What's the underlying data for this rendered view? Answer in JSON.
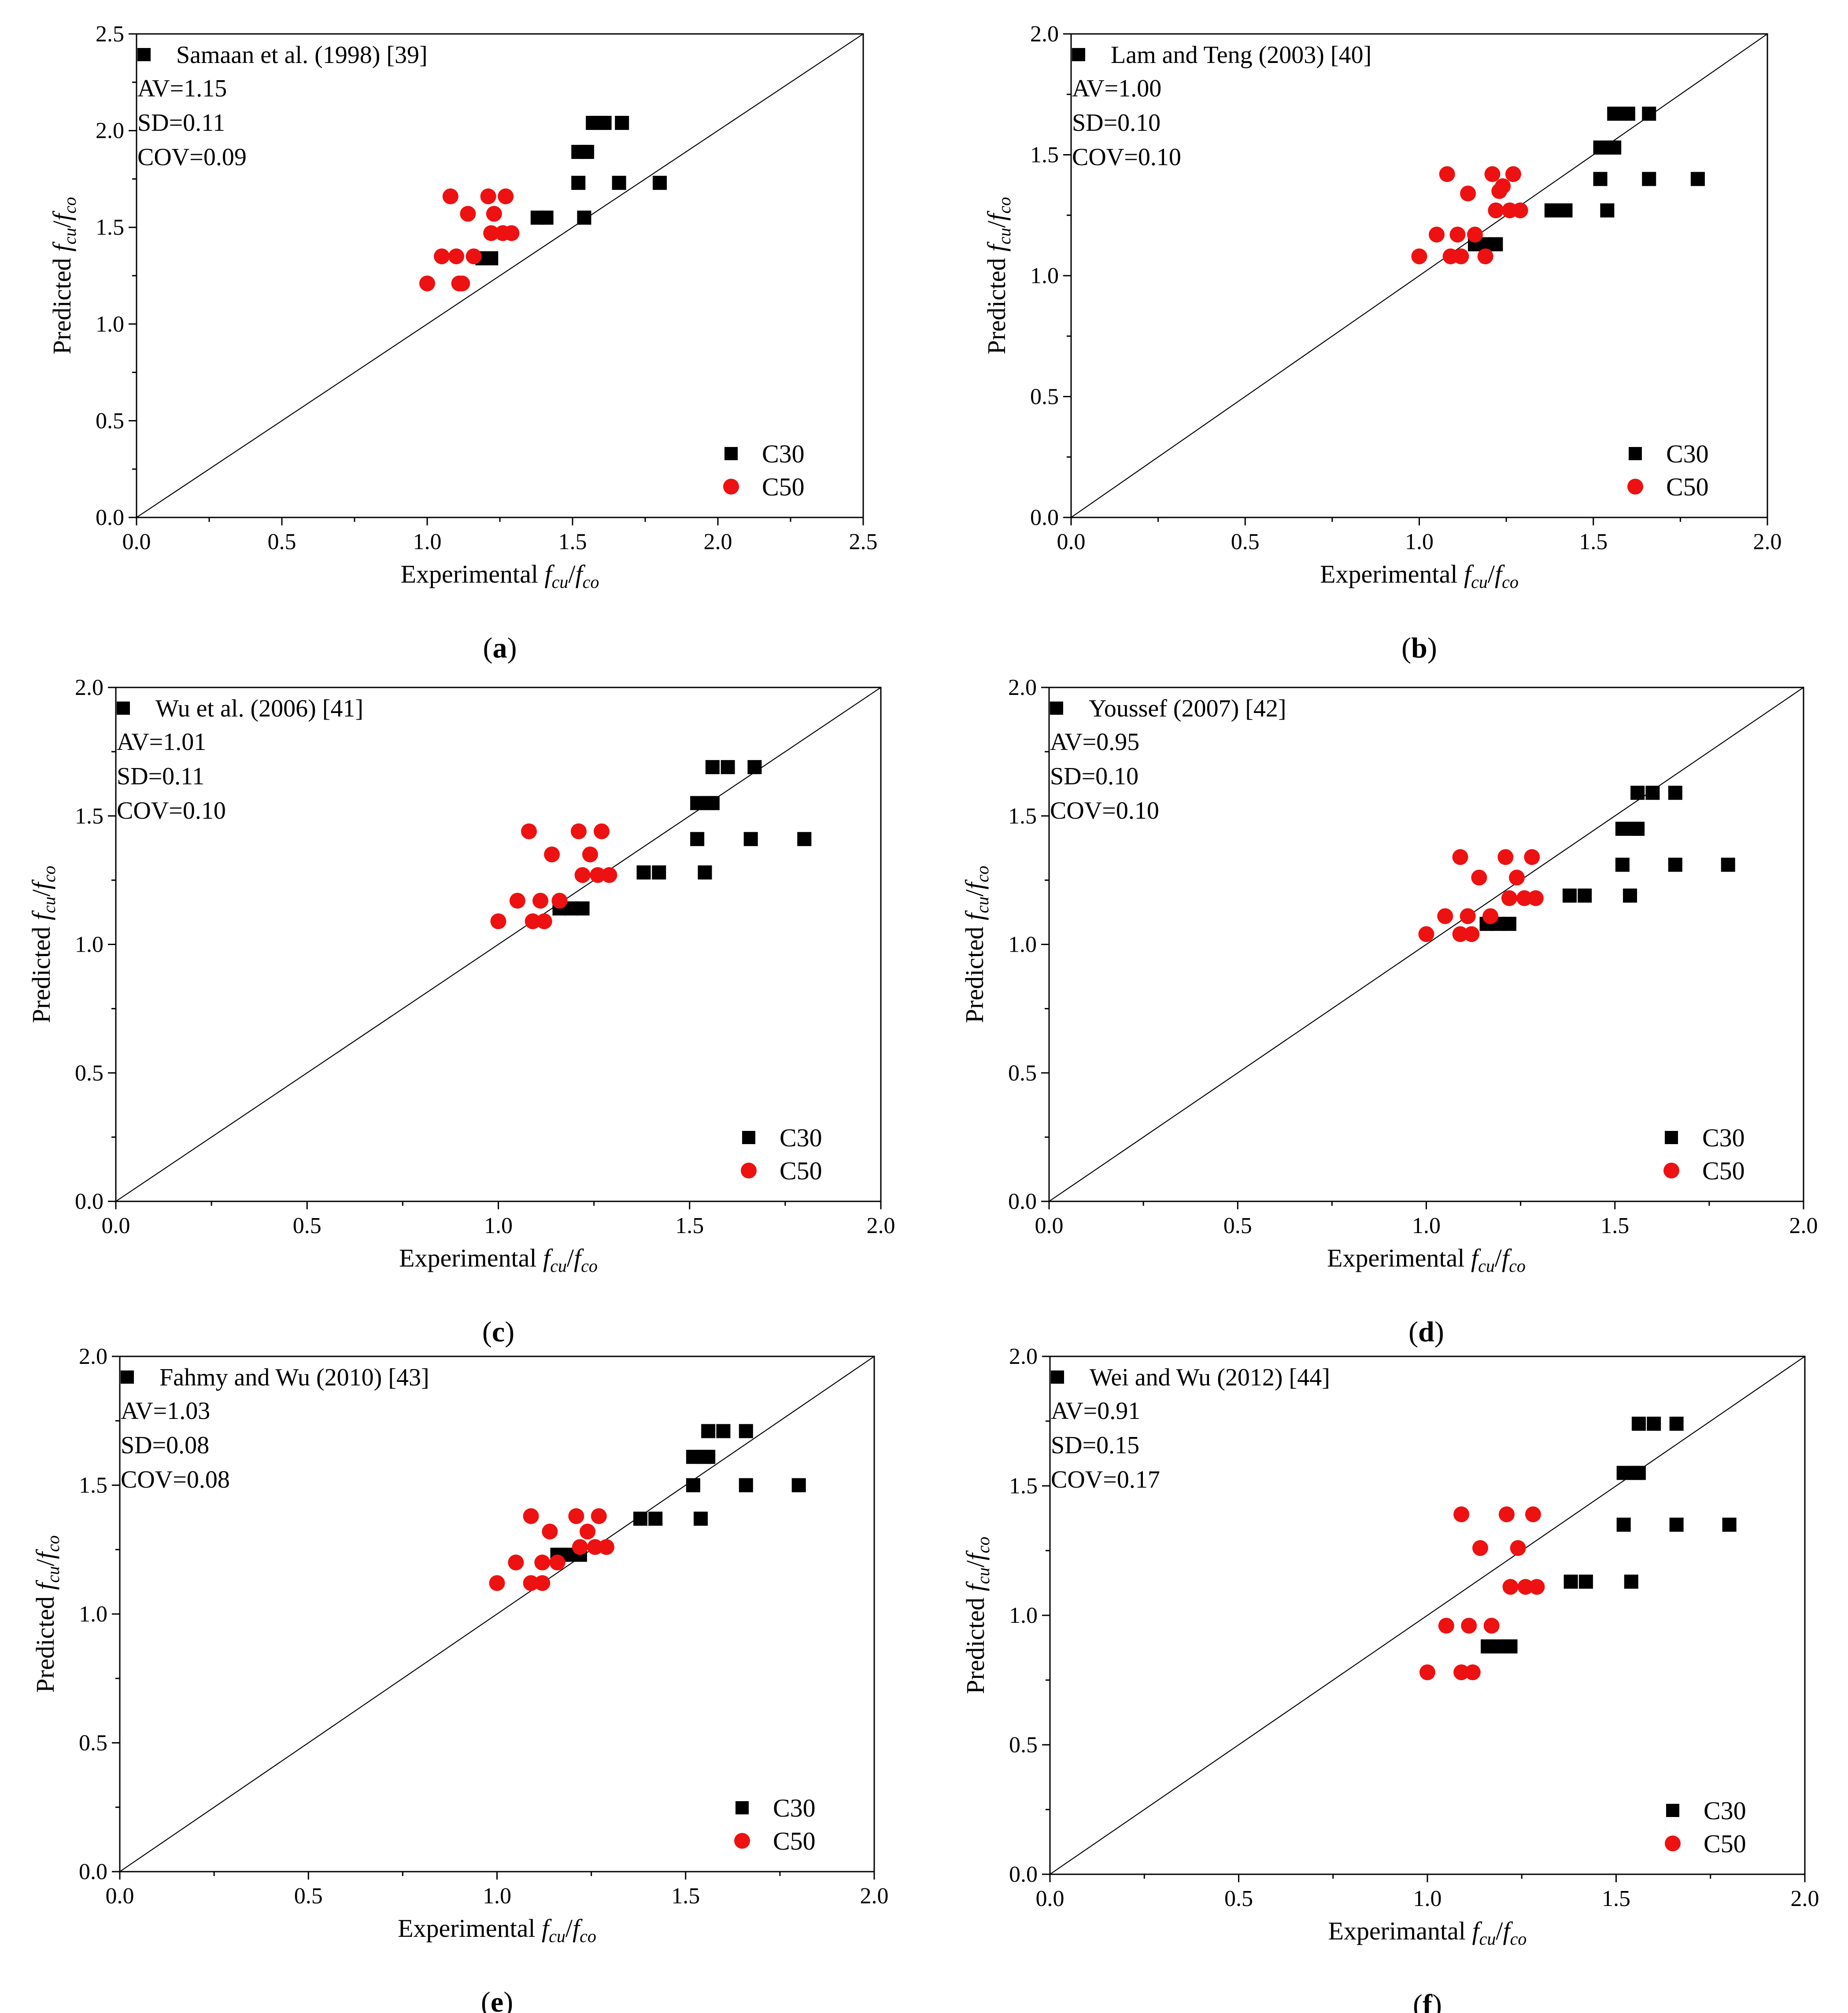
{
  "figure": {
    "legend": {
      "c30": "C30",
      "c50": "C50"
    },
    "colors": {
      "c30": "#000000",
      "c50": "#ee1111"
    }
  },
  "chart_data": [
    {
      "id": "a",
      "type": "scatter",
      "panel_label": "a",
      "xlabel_prefix": "Experimental ",
      "ylabel_prefix": "Predicted ",
      "xlim": [
        0,
        2.5
      ],
      "ylim": [
        0,
        2.5
      ],
      "xticks": [
        "0.0",
        "0.5",
        "1.0",
        "1.5",
        "2.0",
        "2.5"
      ],
      "yticks": [
        "0.0",
        "0.5",
        "1.0",
        "1.5",
        "2.0",
        "2.5"
      ],
      "model_label": "Samaan et al. (1998) [39]",
      "stats": [
        "AV=1.15",
        "SD=0.11",
        "COV=0.09"
      ],
      "series": [
        {
          "name": "C30",
          "marker": "square",
          "x": [
            1.19,
            1.22,
            1.38,
            1.41,
            1.52,
            1.55,
            1.52,
            1.54,
            1.57,
            1.59,
            1.61,
            1.67,
            1.66,
            1.8
          ],
          "y": [
            1.34,
            1.34,
            1.55,
            1.55,
            1.89,
            1.89,
            1.73,
            1.55,
            2.04,
            2.04,
            2.04,
            2.04,
            1.73,
            1.73
          ]
        },
        {
          "name": "C50",
          "marker": "circle",
          "x": [
            1.0,
            1.05,
            1.08,
            1.1,
            1.12,
            1.11,
            1.14,
            1.16,
            1.21,
            1.22,
            1.23,
            1.26,
            1.27,
            1.29
          ],
          "y": [
            1.21,
            1.35,
            1.66,
            1.35,
            1.21,
            1.21,
            1.57,
            1.35,
            1.66,
            1.47,
            1.57,
            1.47,
            1.66,
            1.47
          ]
        }
      ]
    },
    {
      "id": "b",
      "type": "scatter",
      "panel_label": "b",
      "xlabel_prefix": "Experimental ",
      "ylabel_prefix": "Predicted ",
      "xlim": [
        0,
        2.0
      ],
      "ylim": [
        0,
        2.0
      ],
      "xticks": [
        "0.0",
        "0.5",
        "1.0",
        "1.5",
        "2.0"
      ],
      "yticks": [
        "0.0",
        "0.5",
        "1.0",
        "1.5",
        "2.0"
      ],
      "model_label": "Lam and Teng (2003) [40]",
      "stats": [
        "AV=1.00",
        "SD=0.10",
        "COV=0.10"
      ],
      "series": [
        {
          "name": "C30",
          "marker": "square",
          "x": [
            1.16,
            1.19,
            1.22,
            1.38,
            1.42,
            1.52,
            1.55,
            1.56,
            1.56,
            1.6,
            1.66,
            1.52,
            1.66,
            1.54,
            1.8
          ],
          "y": [
            1.13,
            1.13,
            1.13,
            1.27,
            1.27,
            1.53,
            1.53,
            1.53,
            1.67,
            1.67,
            1.67,
            1.4,
            1.4,
            1.27,
            1.4
          ]
        },
        {
          "name": "C50",
          "marker": "circle",
          "x": [
            1.0,
            1.05,
            1.08,
            1.09,
            1.11,
            1.12,
            1.14,
            1.16,
            1.19,
            1.21,
            1.22,
            1.23,
            1.24,
            1.26,
            1.27,
            1.29
          ],
          "y": [
            1.08,
            1.17,
            1.42,
            1.08,
            1.17,
            1.08,
            1.34,
            1.17,
            1.08,
            1.42,
            1.27,
            1.35,
            1.37,
            1.27,
            1.42,
            1.27
          ]
        }
      ]
    },
    {
      "id": "c",
      "type": "scatter",
      "panel_label": "c",
      "xlabel_prefix": "Experimental ",
      "ylabel_prefix": "Predicted ",
      "xlim": [
        0,
        2.0
      ],
      "ylim": [
        0,
        2.0
      ],
      "xticks": [
        "0.0",
        "0.5",
        "1.0",
        "1.5",
        "2.0"
      ],
      "yticks": [
        "0.0",
        "0.5",
        "1.0",
        "1.5",
        "2.0"
      ],
      "model_label": "Wu et al. (2006) [41]",
      "stats": [
        "AV=1.01",
        "SD=0.11",
        "COV=0.10"
      ],
      "series": [
        {
          "name": "C30",
          "marker": "square",
          "x": [
            1.16,
            1.19,
            1.22,
            1.38,
            1.42,
            1.52,
            1.55,
            1.56,
            1.56,
            1.6,
            1.67,
            1.52,
            1.66,
            1.54,
            1.8
          ],
          "y": [
            1.14,
            1.14,
            1.14,
            1.28,
            1.28,
            1.55,
            1.55,
            1.55,
            1.69,
            1.69,
            1.69,
            1.41,
            1.41,
            1.28,
            1.41
          ]
        },
        {
          "name": "C50",
          "marker": "circle",
          "x": [
            1.0,
            1.05,
            1.08,
            1.09,
            1.11,
            1.12,
            1.14,
            1.16,
            1.21,
            1.22,
            1.24,
            1.26,
            1.27,
            1.29
          ],
          "y": [
            1.09,
            1.17,
            1.44,
            1.09,
            1.17,
            1.09,
            1.35,
            1.17,
            1.44,
            1.27,
            1.35,
            1.27,
            1.44,
            1.27
          ]
        }
      ]
    },
    {
      "id": "d",
      "type": "scatter",
      "panel_label": "d",
      "xlabel_prefix": "Experimental ",
      "ylabel_prefix": "Predicted ",
      "xlim": [
        0,
        2.0
      ],
      "ylim": [
        0,
        2.0
      ],
      "xticks": [
        "0.0",
        "0.5",
        "1.0",
        "1.5",
        "2.0"
      ],
      "yticks": [
        "0.0",
        "0.5",
        "1.0",
        "1.5",
        "2.0"
      ],
      "model_label": "Youssef (2007) [42]",
      "stats": [
        "AV=0.95",
        "SD=0.10",
        "COV=0.10"
      ],
      "series": [
        {
          "name": "C30",
          "marker": "square",
          "x": [
            1.16,
            1.19,
            1.22,
            1.38,
            1.42,
            1.52,
            1.55,
            1.56,
            1.56,
            1.6,
            1.66,
            1.52,
            1.66,
            1.54,
            1.8
          ],
          "y": [
            1.08,
            1.08,
            1.08,
            1.19,
            1.19,
            1.45,
            1.45,
            1.45,
            1.59,
            1.59,
            1.59,
            1.31,
            1.31,
            1.19,
            1.31
          ]
        },
        {
          "name": "C50",
          "marker": "circle",
          "x": [
            1.0,
            1.05,
            1.09,
            1.09,
            1.11,
            1.12,
            1.14,
            1.17,
            1.21,
            1.22,
            1.24,
            1.26,
            1.28,
            1.29
          ],
          "y": [
            1.04,
            1.11,
            1.34,
            1.04,
            1.11,
            1.04,
            1.26,
            1.11,
            1.34,
            1.18,
            1.26,
            1.18,
            1.34,
            1.18
          ]
        }
      ]
    },
    {
      "id": "e",
      "type": "scatter",
      "panel_label": "e",
      "xlabel_prefix": "Experimental ",
      "ylabel_prefix": "Predicted ",
      "xlim": [
        0,
        2.0
      ],
      "ylim": [
        0,
        2.0
      ],
      "xticks": [
        "0.0",
        "0.5",
        "1.0",
        "1.5",
        "2.0"
      ],
      "yticks": [
        "0.0",
        "0.5",
        "1.0",
        "1.5",
        "2.0"
      ],
      "model_label": "Fahmy and Wu (2010) [43]",
      "stats": [
        "AV=1.03",
        "SD=0.08",
        "COV=0.08"
      ],
      "series": [
        {
          "name": "C30",
          "marker": "square",
          "x": [
            1.16,
            1.19,
            1.22,
            1.38,
            1.42,
            1.52,
            1.55,
            1.56,
            1.56,
            1.6,
            1.66,
            1.52,
            1.66,
            1.54,
            1.8
          ],
          "y": [
            1.23,
            1.23,
            1.23,
            1.37,
            1.37,
            1.61,
            1.61,
            1.61,
            1.71,
            1.71,
            1.71,
            1.5,
            1.5,
            1.37,
            1.5
          ]
        },
        {
          "name": "C50",
          "marker": "circle",
          "x": [
            1.0,
            1.05,
            1.09,
            1.09,
            1.12,
            1.12,
            1.14,
            1.16,
            1.21,
            1.22,
            1.24,
            1.26,
            1.27,
            1.29
          ],
          "y": [
            1.12,
            1.2,
            1.38,
            1.12,
            1.2,
            1.12,
            1.32,
            1.2,
            1.38,
            1.26,
            1.32,
            1.26,
            1.38,
            1.26
          ]
        }
      ]
    },
    {
      "id": "f",
      "type": "scatter",
      "panel_label": "f",
      "xlabel_prefix": "Experimantal ",
      "ylabel_prefix": "Predicted ",
      "xlim": [
        0,
        2.0
      ],
      "ylim": [
        0,
        2.0
      ],
      "xticks": [
        "0.0",
        "0.5",
        "1.0",
        "1.5",
        "2.0"
      ],
      "yticks": [
        "0.0",
        "0.5",
        "1.0",
        "1.5",
        "2.0"
      ],
      "model_label": "Wei and Wu (2012) [44]",
      "stats": [
        "AV=0.91",
        "SD=0.15",
        "COV=0.17"
      ],
      "series": [
        {
          "name": "C30",
          "marker": "square",
          "x": [
            1.16,
            1.19,
            1.22,
            1.38,
            1.42,
            1.52,
            1.55,
            1.56,
            1.56,
            1.6,
            1.66,
            1.52,
            1.66,
            1.54,
            1.8
          ],
          "y": [
            0.88,
            0.88,
            0.88,
            1.13,
            1.13,
            1.55,
            1.55,
            1.55,
            1.74,
            1.74,
            1.74,
            1.35,
            1.35,
            1.13,
            1.35
          ]
        },
        {
          "name": "C50",
          "marker": "circle",
          "x": [
            1.0,
            1.05,
            1.09,
            1.09,
            1.11,
            1.12,
            1.14,
            1.17,
            1.21,
            1.22,
            1.24,
            1.26,
            1.28,
            1.29
          ],
          "y": [
            0.78,
            0.96,
            1.39,
            0.78,
            0.96,
            0.78,
            1.26,
            0.96,
            1.39,
            1.11,
            1.26,
            1.11,
            1.39,
            1.11
          ]
        }
      ]
    }
  ]
}
